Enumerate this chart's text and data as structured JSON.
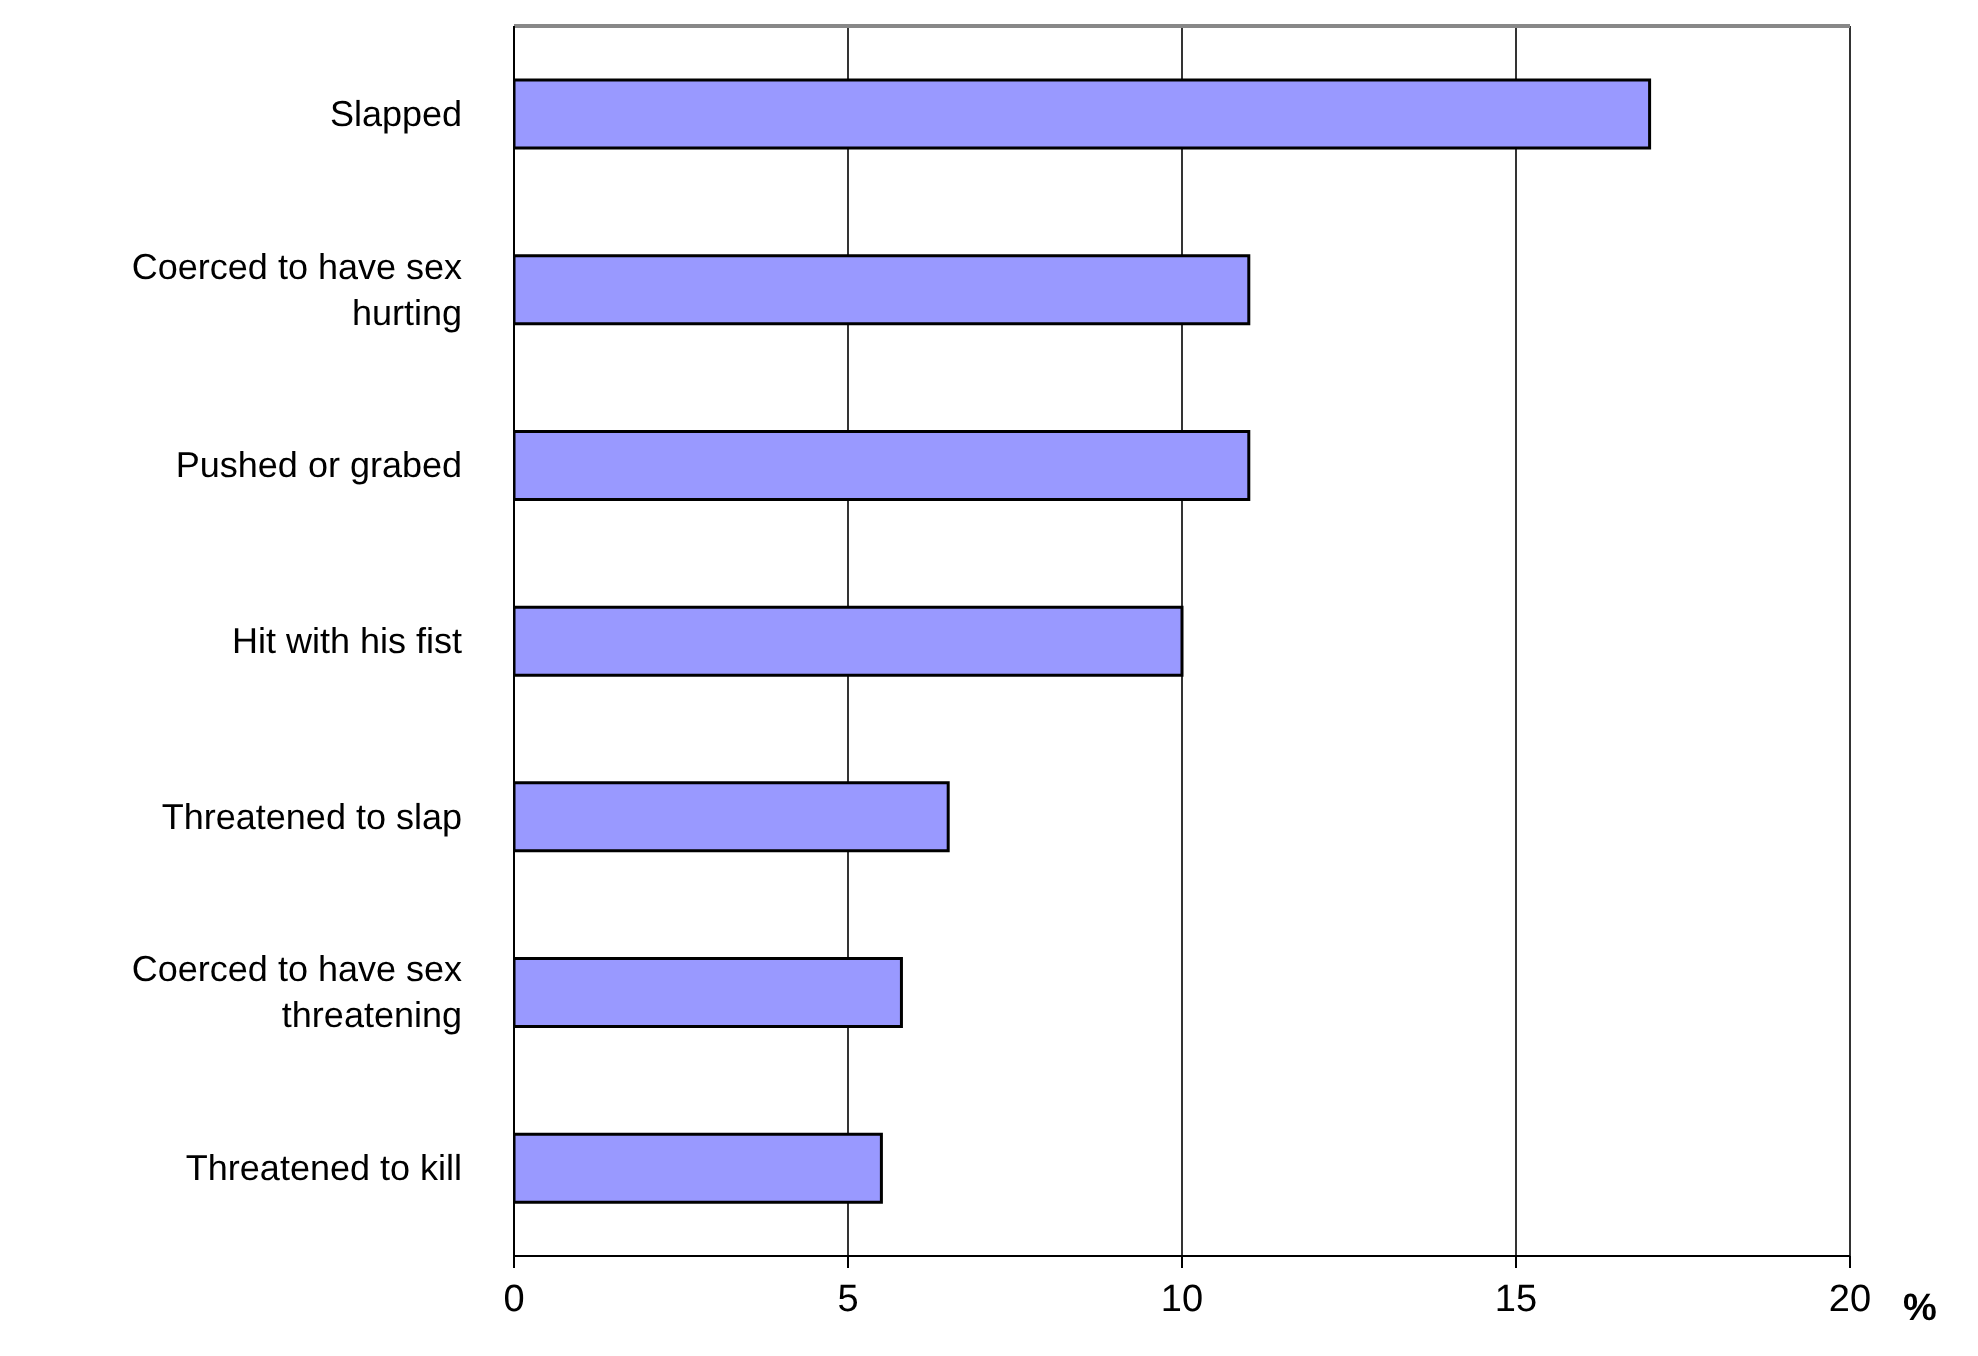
{
  "chart_data": {
    "type": "bar",
    "orientation": "horizontal",
    "categories": [
      "Slapped",
      "Coerced to have sex hurting",
      "Pushed or grabed",
      "Hit with his fist",
      "Threatened to slap",
      "Coerced to have sex threatening",
      "Threatened to kill"
    ],
    "values": [
      17,
      11,
      11,
      10,
      6.5,
      5.8,
      5.5
    ],
    "color": "#9999ff",
    "xlim": [
      0,
      20
    ],
    "xticks": [
      0,
      5,
      10,
      15,
      20
    ],
    "xlabel": "%",
    "grid": "x"
  }
}
